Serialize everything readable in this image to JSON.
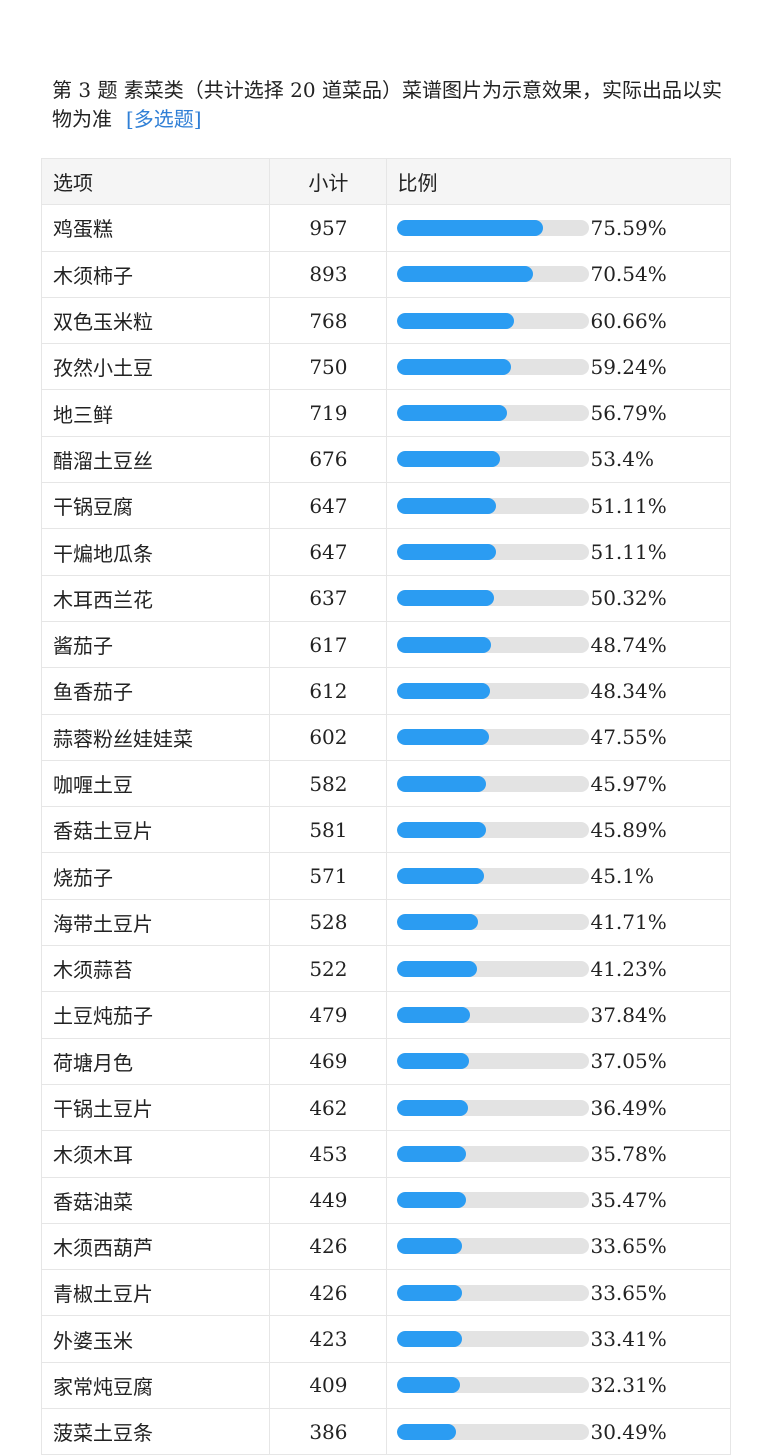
{
  "question": {
    "text": "第 3 题   素菜类（共计选择 20 道菜品）菜谱图片为示意效果，实际出品以实物为准",
    "tag": "[多选题]"
  },
  "table": {
    "headers": [
      "选项",
      "小计",
      "比例"
    ],
    "rows": [
      {
        "option": "鸡蛋糕",
        "count": "957",
        "percent": "75.59%",
        "ratio": 0.7559
      },
      {
        "option": "木须柿子",
        "count": "893",
        "percent": "70.54%",
        "ratio": 0.7054
      },
      {
        "option": "双色玉米粒",
        "count": "768",
        "percent": "60.66%",
        "ratio": 0.6066
      },
      {
        "option": "孜然小土豆",
        "count": "750",
        "percent": "59.24%",
        "ratio": 0.5924
      },
      {
        "option": "地三鲜",
        "count": "719",
        "percent": "56.79%",
        "ratio": 0.5679
      },
      {
        "option": "醋溜土豆丝",
        "count": "676",
        "percent": "53.4%",
        "ratio": 0.534
      },
      {
        "option": "干锅豆腐",
        "count": "647",
        "percent": "51.11%",
        "ratio": 0.5111
      },
      {
        "option": "干煸地瓜条",
        "count": "647",
        "percent": "51.11%",
        "ratio": 0.5111
      },
      {
        "option": "木耳西兰花",
        "count": "637",
        "percent": "50.32%",
        "ratio": 0.5032
      },
      {
        "option": "酱茄子",
        "count": "617",
        "percent": "48.74%",
        "ratio": 0.4874
      },
      {
        "option": "鱼香茄子",
        "count": "612",
        "percent": "48.34%",
        "ratio": 0.4834
      },
      {
        "option": "蒜蓉粉丝娃娃菜",
        "count": "602",
        "percent": "47.55%",
        "ratio": 0.4755
      },
      {
        "option": "咖喱土豆",
        "count": "582",
        "percent": "45.97%",
        "ratio": 0.4597
      },
      {
        "option": "香菇土豆片",
        "count": "581",
        "percent": "45.89%",
        "ratio": 0.4589
      },
      {
        "option": "烧茄子",
        "count": "571",
        "percent": "45.1%",
        "ratio": 0.451
      },
      {
        "option": "海带土豆片",
        "count": "528",
        "percent": "41.71%",
        "ratio": 0.4171
      },
      {
        "option": "木须蒜苔",
        "count": "522",
        "percent": "41.23%",
        "ratio": 0.4123
      },
      {
        "option": "土豆炖茄子",
        "count": "479",
        "percent": "37.84%",
        "ratio": 0.3784
      },
      {
        "option": "荷塘月色",
        "count": "469",
        "percent": "37.05%",
        "ratio": 0.3705
      },
      {
        "option": "干锅土豆片",
        "count": "462",
        "percent": "36.49%",
        "ratio": 0.3649
      },
      {
        "option": "木须木耳",
        "count": "453",
        "percent": "35.78%",
        "ratio": 0.3578
      },
      {
        "option": "香菇油菜",
        "count": "449",
        "percent": "35.47%",
        "ratio": 0.3547
      },
      {
        "option": "木须西葫芦",
        "count": "426",
        "percent": "33.65%",
        "ratio": 0.3365
      },
      {
        "option": "青椒土豆片",
        "count": "426",
        "percent": "33.65%",
        "ratio": 0.3365
      },
      {
        "option": "外婆玉米",
        "count": "423",
        "percent": "33.41%",
        "ratio": 0.3341
      },
      {
        "option": "家常炖豆腐",
        "count": "409",
        "percent": "32.31%",
        "ratio": 0.3231
      },
      {
        "option": "菠菜土豆条",
        "count": "386",
        "percent": "30.49%",
        "ratio": 0.3049
      }
    ]
  },
  "colors": {
    "bar_fill": "#2b9cf2",
    "bar_track": "#e3e3e3",
    "tag": "#2f7fd6",
    "header_bg": "#f5f5f5"
  }
}
